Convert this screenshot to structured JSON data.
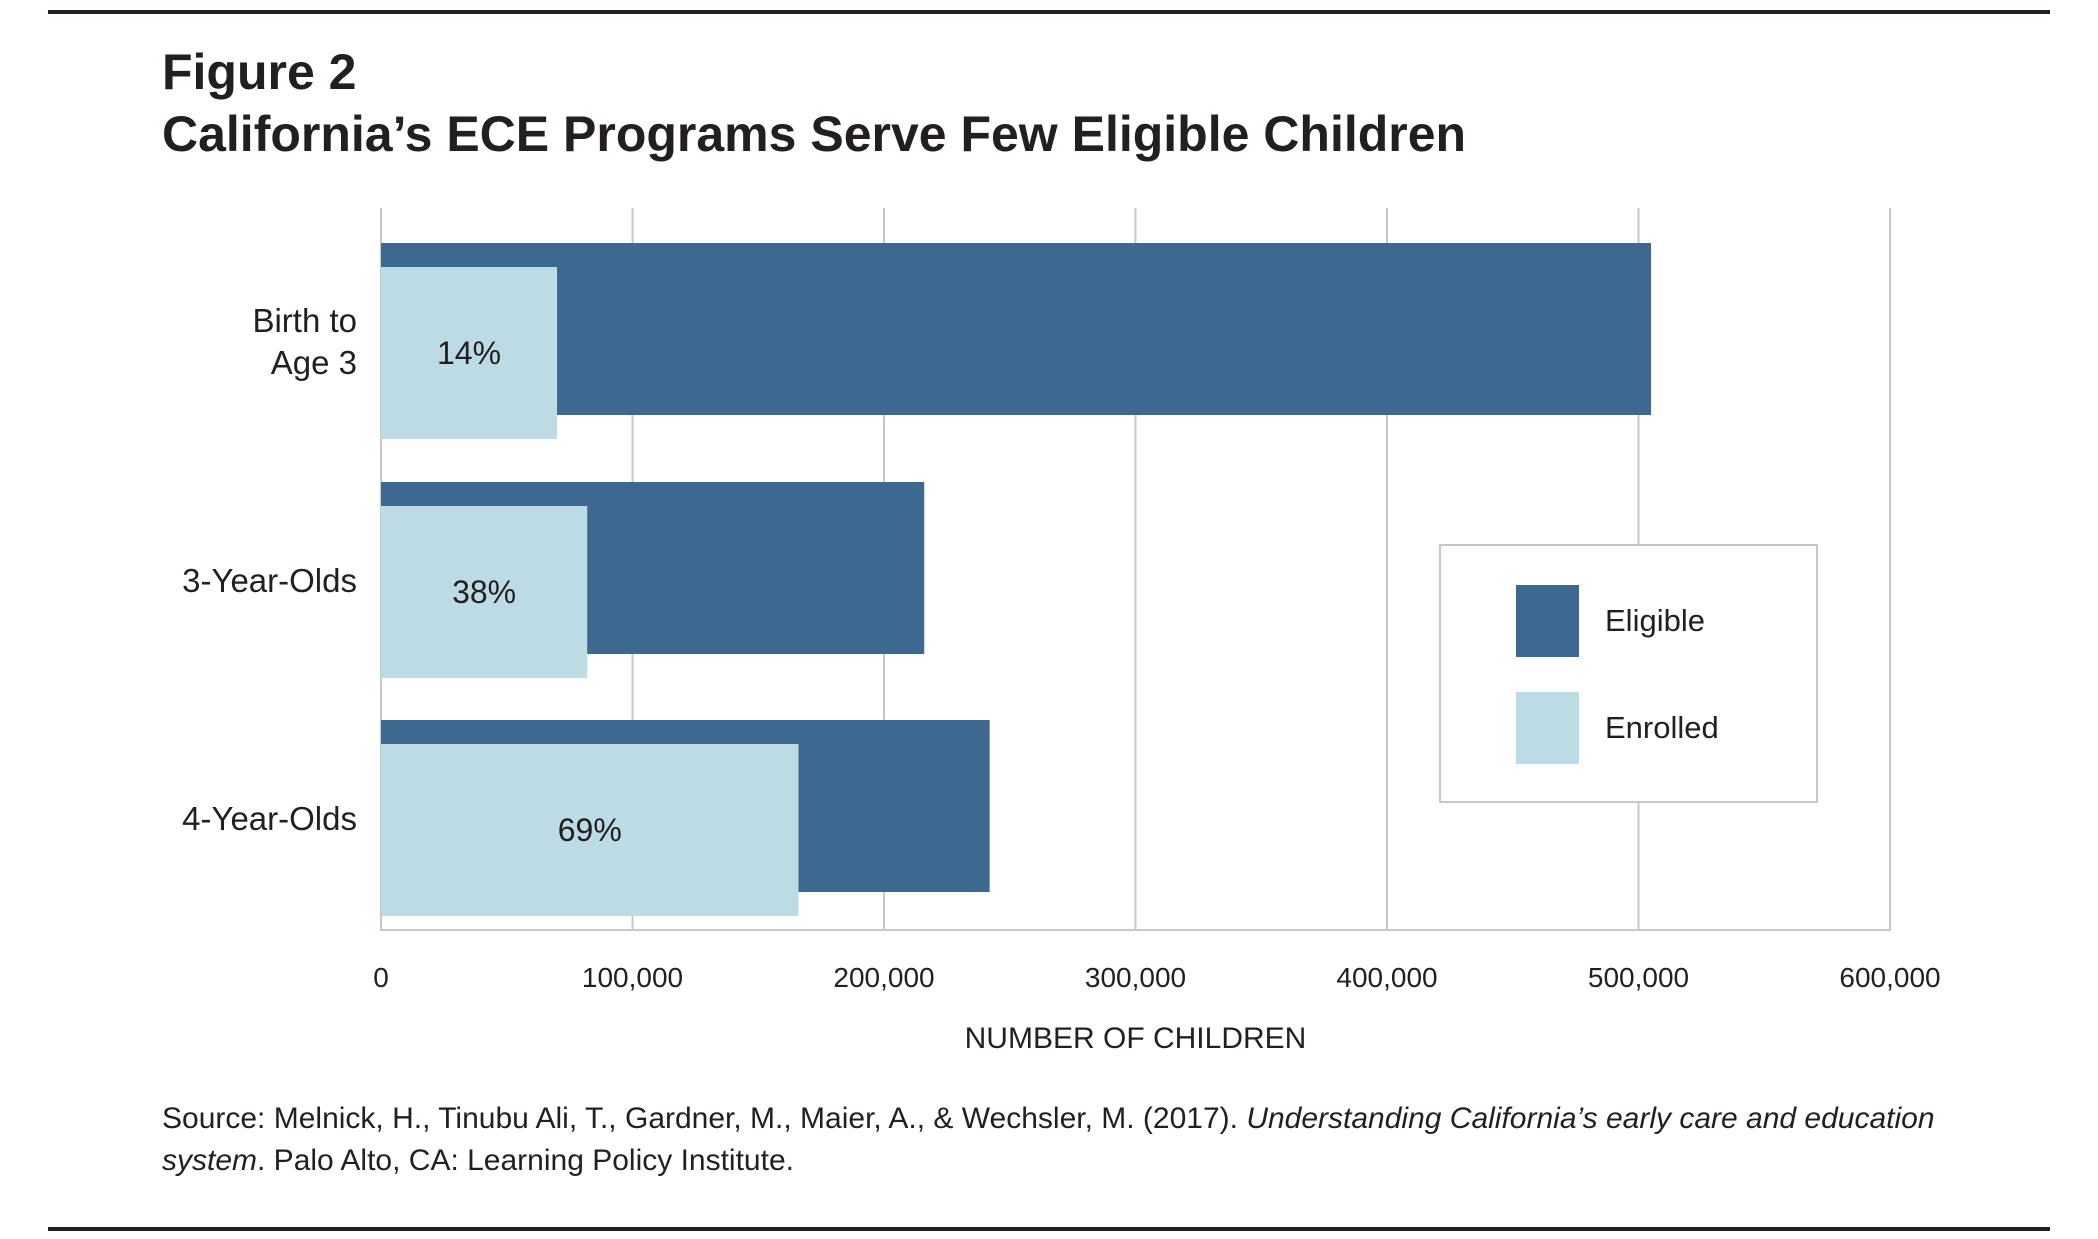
{
  "figure": {
    "label": "Figure 2",
    "title": "California’s ECE Programs Serve Few Eligible Children"
  },
  "chart_data": {
    "type": "bar",
    "orientation": "horizontal",
    "categories": [
      "Birth to Age 3",
      "3-Year-Olds",
      "4-Year-Olds"
    ],
    "category_lines": [
      [
        "Birth to",
        "Age 3"
      ],
      [
        "3-Year-Olds"
      ],
      [
        "4-Year-Olds"
      ]
    ],
    "series": [
      {
        "name": "Eligible",
        "color": "#3d6890",
        "values": [
          505000,
          216000,
          242000
        ]
      },
      {
        "name": "Enrolled",
        "color": "#bddbe4",
        "values": [
          70000,
          82000,
          166000
        ]
      }
    ],
    "bar_labels": [
      "14%",
      "38%",
      "69%"
    ],
    "xlabel": "NUMBER OF CHILDREN",
    "ylabel": "",
    "xlim": [
      0,
      600000
    ],
    "xticks": [
      0,
      100000,
      200000,
      300000,
      400000,
      500000,
      600000
    ],
    "xtick_labels": [
      "0",
      "100,000",
      "200,000",
      "300,000",
      "400,000",
      "500,000",
      "600,000"
    ],
    "grid": "vertical",
    "legend": {
      "placement": "right",
      "entries": [
        "Eligible",
        "Enrolled"
      ]
    }
  },
  "source": {
    "prefix": "Source: Melnick, H., Tinubu Ali, T., Gardner, M., Maier, A., & Wechsler, M. (2017). ",
    "italic": "Understanding California’s early care and education system",
    "suffix": ". Palo Alto, CA: Learning Policy Institute."
  }
}
